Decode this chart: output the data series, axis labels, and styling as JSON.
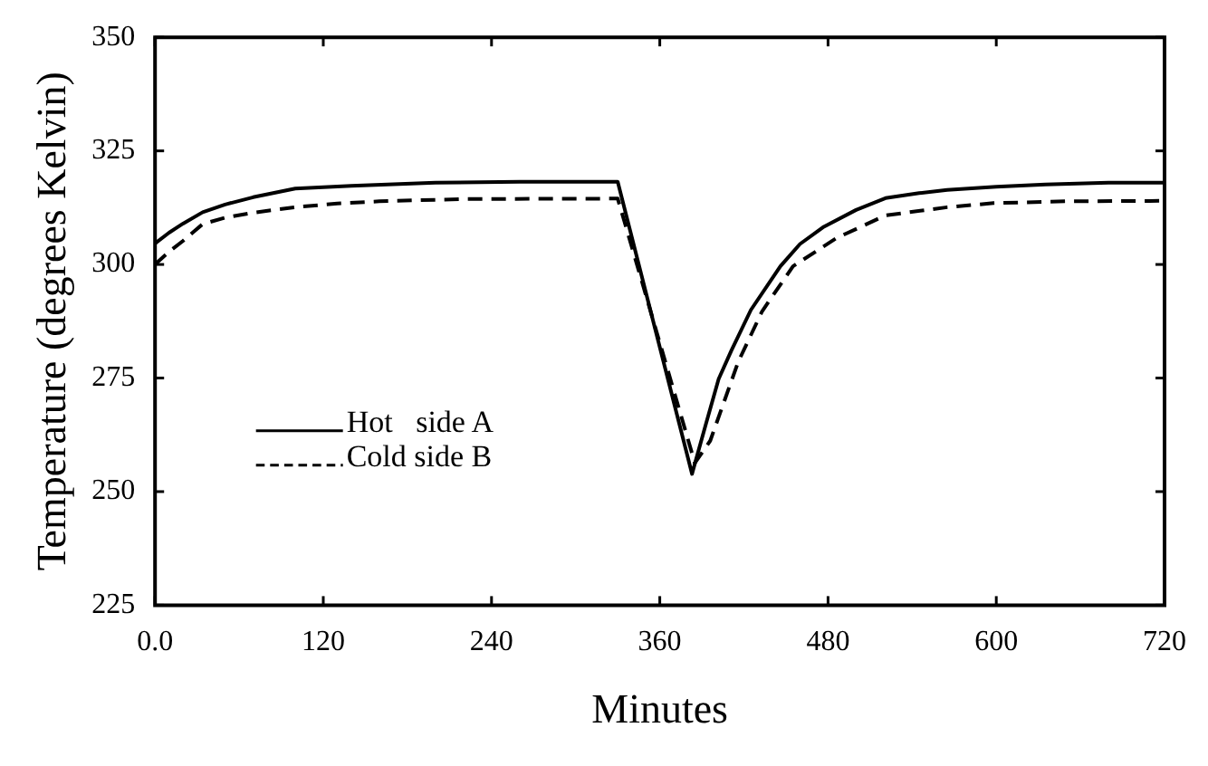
{
  "chart_data": {
    "type": "line",
    "xlabel": "Minutes",
    "ylabel": "Temperature (degrees Kelvin)",
    "xlim": [
      0,
      720
    ],
    "ylim": [
      225,
      350
    ],
    "xticks": [
      {
        "value": 0,
        "label": "0.0"
      },
      120,
      240,
      360,
      480,
      600,
      720
    ],
    "yticks": [
      225,
      250,
      275,
      300,
      325,
      350
    ],
    "grid": false,
    "legend": "left",
    "marker": "none",
    "series": [
      {
        "name": "Hot   side A",
        "color": "#000000",
        "line_style": "solid",
        "x": [
          0,
          10,
          20,
          34,
          50,
          70,
          100,
          140,
          200,
          260,
          330,
          383,
          393,
          402,
          411,
          425,
          446,
          460,
          477,
          500,
          521,
          545,
          565,
          600,
          635,
          680,
          720
        ],
        "values": [
          304.6,
          307,
          309,
          311.5,
          313.2,
          314.8,
          316.7,
          317.3,
          318,
          318.2,
          318.2,
          253.9,
          265,
          274.8,
          281,
          290,
          299.6,
          304.5,
          308.3,
          312,
          314.6,
          315.7,
          316.4,
          317.1,
          317.6,
          318,
          318
        ]
      },
      {
        "name": "Cold side B",
        "color": "#000000",
        "line_style": "dashed",
        "x": [
          0,
          10,
          20,
          34,
          50,
          70,
          100,
          130,
          160,
          220,
          330,
          385,
          396,
          416,
          433,
          455,
          486,
          521,
          565,
          598,
          650,
          720
        ],
        "values": [
          300,
          302.8,
          305.2,
          308.9,
          310.3,
          311.4,
          312.6,
          313.4,
          313.9,
          314.4,
          314.5,
          256.3,
          261.2,
          278.6,
          289.7,
          299.6,
          305.8,
          310.8,
          312.6,
          313.5,
          313.9,
          314
        ]
      }
    ]
  }
}
